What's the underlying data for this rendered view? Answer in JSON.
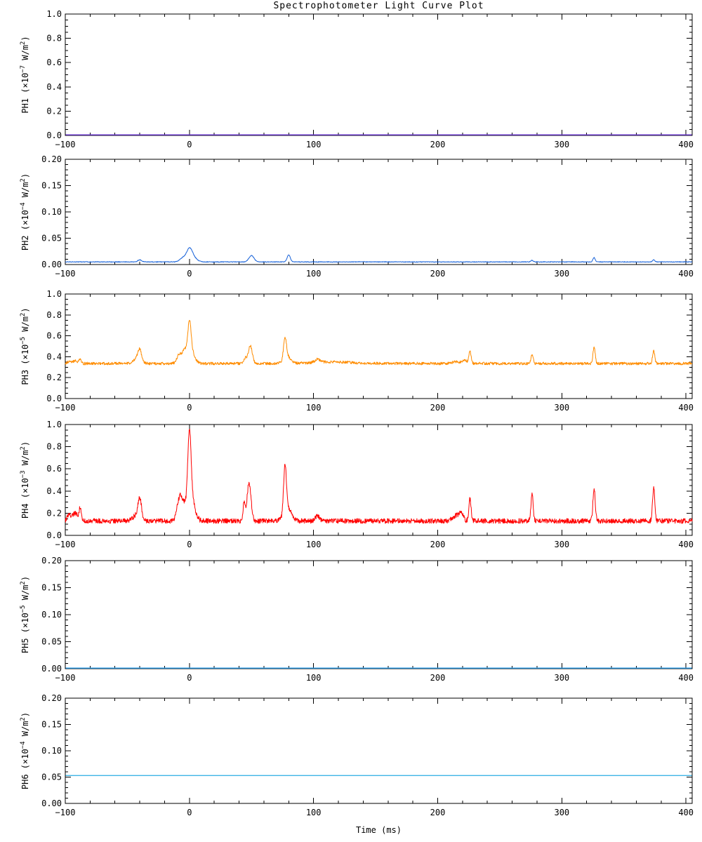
{
  "chart_data": {
    "type": "line",
    "title": "Spectrophotometer Light Curve Plot",
    "xlabel": "Time (ms)",
    "x": {
      "lim": [
        -100,
        405
      ],
      "major_ticks": [
        -100,
        0,
        100,
        200,
        300,
        400
      ],
      "minor_step": 20
    },
    "unit_base": "W/m",
    "unit_power": "2",
    "panels": [
      {
        "channel": "PH1",
        "unit_exp": "-7",
        "ylim": [
          0,
          1.0
        ],
        "y_major_step": 0.2,
        "y_minor_step": 0.05,
        "y_decimals": 1,
        "color": "#6633cc",
        "series_type": "flat",
        "flat_value": 0.0
      },
      {
        "channel": "PH2",
        "unit_exp": "-4",
        "ylim": [
          0,
          0.2
        ],
        "y_major_step": 0.05,
        "y_minor_step": 0.01,
        "y_decimals": 2,
        "color": "#1560d8",
        "series_type": "noisy",
        "baseline": 0.005,
        "noise_amp": 0.0006,
        "seed": 2,
        "peaks": [
          [
            -40,
            0.004,
            1.5
          ],
          [
            -5,
            0.008,
            2.5
          ],
          [
            0,
            0.021,
            2.2
          ],
          [
            3,
            0.008,
            3
          ],
          [
            50,
            0.012,
            2
          ],
          [
            80,
            0.013,
            1.3
          ],
          [
            276,
            0.003,
            1
          ],
          [
            326,
            0.008,
            0.9
          ],
          [
            374,
            0.004,
            0.9
          ]
        ]
      },
      {
        "channel": "PH3",
        "unit_exp": "-5",
        "ylim": [
          0,
          1.0
        ],
        "y_major_step": 0.2,
        "y_minor_step": 0.05,
        "y_decimals": 1,
        "color": "#ff8c00",
        "series_type": "noisy",
        "baseline": 0.335,
        "noise_amp": 0.013,
        "seed": 3,
        "peaks": [
          [
            -97,
            0.02,
            1.5
          ],
          [
            -92,
            0.025,
            2
          ],
          [
            -88,
            0.035,
            1
          ],
          [
            -42,
            0.05,
            3
          ],
          [
            -40,
            0.1,
            1.4
          ],
          [
            -8,
            0.09,
            2
          ],
          [
            -4,
            0.1,
            1.5
          ],
          [
            0,
            0.3,
            1.3
          ],
          [
            1,
            0.12,
            3
          ],
          [
            45,
            0.05,
            1
          ],
          [
            49,
            0.17,
            1.6
          ],
          [
            77,
            0.2,
            1.2
          ],
          [
            79,
            0.06,
            3
          ],
          [
            103,
            0.03,
            2
          ],
          [
            115,
            0.015,
            15
          ],
          [
            215,
            0.02,
            3
          ],
          [
            222,
            0.035,
            1.5
          ],
          [
            226,
            0.12,
            0.9
          ],
          [
            276,
            0.085,
            0.9
          ],
          [
            326,
            0.16,
            0.9
          ],
          [
            374,
            0.12,
            0.9
          ]
        ]
      },
      {
        "channel": "PH4",
        "unit_exp": "-3",
        "ylim": [
          0,
          1.0
        ],
        "y_major_step": 0.2,
        "y_minor_step": 0.05,
        "y_decimals": 1,
        "color": "#ff0000",
        "series_type": "noisy",
        "baseline": 0.13,
        "noise_amp": 0.022,
        "seed": 4,
        "peaks": [
          [
            -97,
            0.06,
            1.5
          ],
          [
            -92,
            0.07,
            2
          ],
          [
            -88,
            0.11,
            0.9
          ],
          [
            -42,
            0.06,
            3
          ],
          [
            -40,
            0.17,
            1.3
          ],
          [
            -8,
            0.19,
            2
          ],
          [
            -5,
            0.1,
            2
          ],
          [
            0,
            0.62,
            1.3
          ],
          [
            1,
            0.22,
            3
          ],
          [
            44,
            0.15,
            0.9
          ],
          [
            48,
            0.34,
            1.6
          ],
          [
            77,
            0.42,
            1.1
          ],
          [
            79,
            0.12,
            3
          ],
          [
            103,
            0.05,
            1.5
          ],
          [
            215,
            0.05,
            3
          ],
          [
            219,
            0.07,
            1.5
          ],
          [
            226,
            0.2,
            0.9
          ],
          [
            276,
            0.24,
            0.9
          ],
          [
            326,
            0.3,
            0.9
          ],
          [
            374,
            0.3,
            0.9
          ]
        ]
      },
      {
        "channel": "PH5",
        "unit_exp": "-5",
        "ylim": [
          0,
          0.2
        ],
        "y_major_step": 0.05,
        "y_minor_step": 0.01,
        "y_decimals": 2,
        "color": "#2196e3",
        "series_type": "flat",
        "flat_value": 0.0
      },
      {
        "channel": "PH6",
        "unit_exp": "-4",
        "ylim": [
          0,
          0.2
        ],
        "y_major_step": 0.05,
        "y_minor_step": 0.01,
        "y_decimals": 2,
        "color": "#29abe2",
        "series_type": "flat",
        "flat_value": 0.053
      }
    ]
  }
}
